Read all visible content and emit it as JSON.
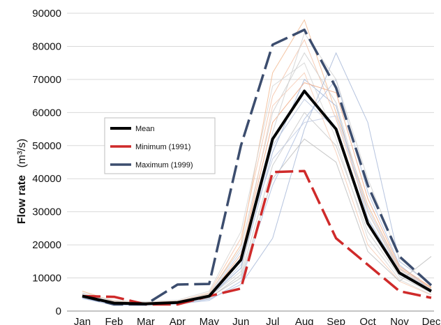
{
  "chart_data": {
    "type": "line",
    "title": "",
    "xlabel": "",
    "ylabel": "Flow rate",
    "ylabel_unit": "(m³/s)",
    "categories": [
      "Jan",
      "Feb",
      "Mar",
      "Apr",
      "May",
      "Jun",
      "Jul",
      "Aug",
      "Sep",
      "Oct",
      "Nov",
      "Dec"
    ],
    "ylim": [
      0,
      90000
    ],
    "yticks": [
      0,
      10000,
      20000,
      30000,
      40000,
      50000,
      60000,
      70000,
      80000,
      90000
    ],
    "grid": "horizontal",
    "legend_position": "left",
    "series": [
      {
        "name": "Mean",
        "values": [
          4500,
          2400,
          2200,
          2600,
          4500,
          15500,
          52000,
          66500,
          55000,
          26500,
          11500,
          6000
        ],
        "color": "#000000",
        "style": "solid"
      },
      {
        "name": "Minimum (1991)",
        "values": [
          4500,
          4300,
          2000,
          2000,
          4500,
          6800,
          42000,
          42300,
          22000,
          14000,
          6000,
          4000
        ],
        "color": "#cf2a2a",
        "style": "dashed"
      },
      {
        "name": "Maximum (1999)",
        "values": [
          4500,
          2000,
          2000,
          8000,
          8200,
          50000,
          80500,
          85000,
          67500,
          38000,
          16500,
          7800
        ],
        "color": "#3c4d6e",
        "style": "dashed"
      }
    ],
    "background_years": [
      {
        "values": [
          6000,
          3000,
          2500,
          2800,
          5000,
          20000,
          72000,
          88000,
          60000,
          32000,
          13000,
          7000
        ],
        "color": "#f2b98f"
      },
      {
        "values": [
          5000,
          2500,
          2300,
          2500,
          4200,
          13000,
          48000,
          70000,
          62000,
          28000,
          12000,
          6500
        ],
        "color": "#9fb3d6"
      },
      {
        "values": [
          4200,
          2200,
          2000,
          2300,
          3800,
          11000,
          44000,
          60000,
          50000,
          24000,
          10500,
          5500
        ],
        "color": "#c8c8c8"
      },
      {
        "values": [
          4800,
          2800,
          2600,
          3000,
          5500,
          22000,
          65000,
          82000,
          58000,
          30000,
          12500,
          6800
        ],
        "color": "#f5c3a8"
      },
      {
        "values": [
          3800,
          1800,
          1800,
          2100,
          3200,
          9000,
          38000,
          58000,
          70000,
          36000,
          14000,
          6200
        ],
        "color": "#aebfe0"
      },
      {
        "values": [
          5500,
          3200,
          2800,
          3300,
          6000,
          24000,
          68000,
          75000,
          52000,
          22000,
          9500,
          5000
        ],
        "color": "#d5d5d5"
      },
      {
        "values": [
          4600,
          2600,
          2400,
          2700,
          4600,
          17000,
          57000,
          69000,
          66000,
          34000,
          13500,
          7200
        ],
        "color": "#f0a882"
      },
      {
        "values": [
          4300,
          2100,
          2000,
          2400,
          4000,
          14000,
          50000,
          64000,
          55000,
          26000,
          11000,
          5800
        ],
        "color": "#b8c6de"
      },
      {
        "values": [
          5200,
          2900,
          2500,
          2900,
          5200,
          19000,
          60000,
          78000,
          63000,
          30000,
          12000,
          6600
        ],
        "color": "#cccccc"
      },
      {
        "values": [
          3900,
          2000,
          1900,
          2200,
          3600,
          8000,
          22000,
          55000,
          78000,
          57000,
          15000,
          8000
        ],
        "color": "#a8b8d8"
      },
      {
        "values": [
          4700,
          2700,
          2300,
          2600,
          4400,
          16000,
          62000,
          72000,
          48000,
          20000,
          9000,
          4800
        ],
        "color": "#f7cdb5"
      },
      {
        "values": [
          5000,
          2400,
          2200,
          2500,
          4300,
          12000,
          54000,
          84000,
          70000,
          40000,
          16000,
          7500
        ],
        "color": "#d0d0d0"
      },
      {
        "values": [
          4400,
          2300,
          2100,
          2600,
          4800,
          18000,
          46000,
          57000,
          59000,
          31000,
          12800,
          6100
        ],
        "color": "#c2cde3"
      },
      {
        "values": [
          4100,
          2200,
          2100,
          2400,
          4100,
          10000,
          40000,
          52000,
          45000,
          18000,
          9000,
          16500
        ],
        "color": "#bdbdbd"
      }
    ]
  }
}
